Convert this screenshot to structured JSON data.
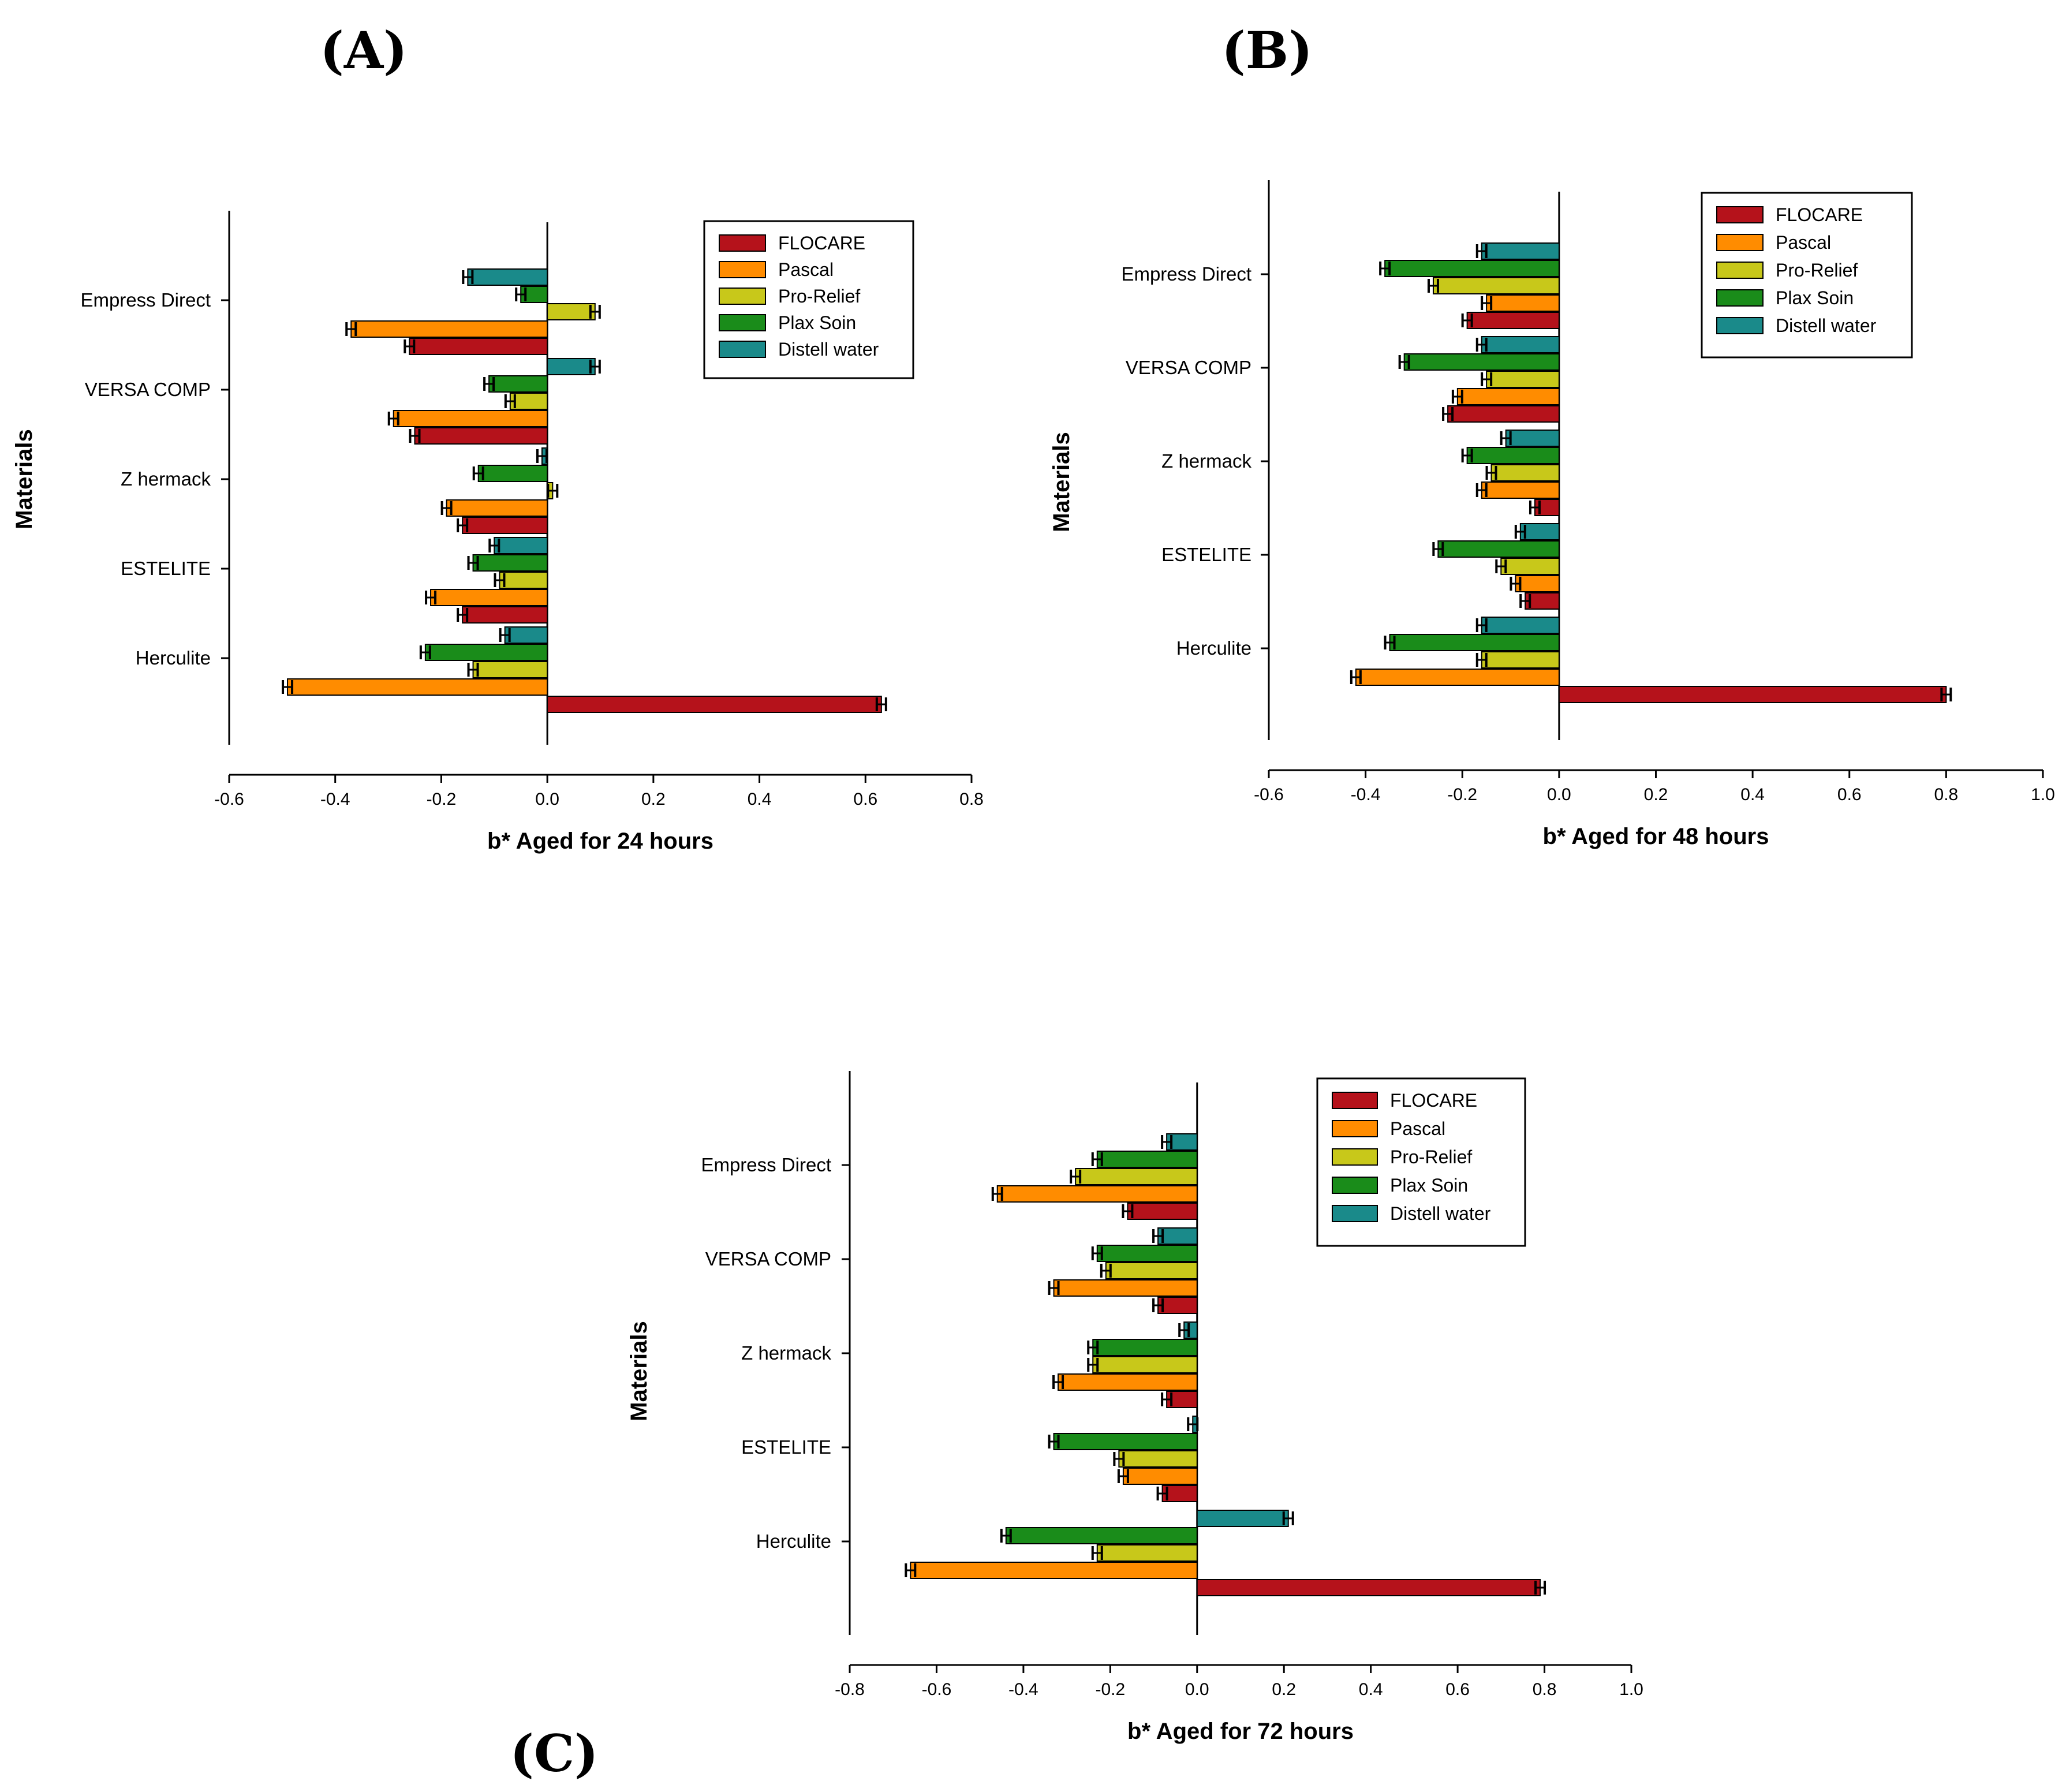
{
  "colors": {
    "FLOCARE": "#b5121b",
    "Pascal": "#ff8c00",
    "Pro-Relief": "#c8c81a",
    "Plax Soin": "#1a8c1a",
    "Distell water": "#1a8a8a"
  },
  "chart_data": [
    {
      "type": "bar",
      "orientation": "horizontal",
      "panel_label": "(A)",
      "title": "",
      "xlabel": "b* Aged for 24 hours",
      "ylabel": "Materials",
      "xlim": [
        -0.6,
        0.8
      ],
      "xticks": [
        "-0.6",
        "-0.4",
        "-0.2",
        "0.0",
        "0.2",
        "0.4",
        "0.6",
        "0.8"
      ],
      "categories": [
        "Empress Direct",
        "VERSA COMP",
        "Z hermack",
        "ESTELITE",
        "Herculite"
      ],
      "legend": "top-right",
      "series": [
        {
          "name": "FLOCARE",
          "values": [
            -0.26,
            -0.25,
            -0.16,
            -0.16,
            0.63
          ]
        },
        {
          "name": "Pascal",
          "values": [
            -0.37,
            -0.29,
            -0.19,
            -0.22,
            -0.49
          ]
        },
        {
          "name": "Pro-Relief",
          "values": [
            0.09,
            -0.07,
            0.01,
            -0.09,
            -0.14
          ]
        },
        {
          "name": "Plax Soin",
          "values": [
            -0.05,
            -0.11,
            -0.13,
            -0.14,
            -0.23
          ]
        },
        {
          "name": "Distell water",
          "values": [
            -0.15,
            0.09,
            -0.01,
            -0.1,
            -0.08
          ]
        }
      ]
    },
    {
      "type": "bar",
      "orientation": "horizontal",
      "panel_label": "(B)",
      "title": "",
      "xlabel": "b* Aged for 48 hours",
      "ylabel": "Materials",
      "xlim": [
        -0.6,
        1.0
      ],
      "xticks": [
        "-0.6",
        "-0.4",
        "-0.2",
        "0.0",
        "0.2",
        "0.4",
        "0.6",
        "0.8",
        "1.0"
      ],
      "categories": [
        "Empress Direct",
        "VERSA COMP",
        "Z hermack",
        "ESTELITE",
        "Herculite"
      ],
      "legend": "top-right",
      "series": [
        {
          "name": "FLOCARE",
          "values": [
            -0.19,
            -0.23,
            -0.05,
            -0.07,
            0.8
          ]
        },
        {
          "name": "Pascal",
          "values": [
            -0.15,
            -0.21,
            -0.16,
            -0.09,
            -0.42
          ]
        },
        {
          "name": "Pro-Relief",
          "values": [
            -0.26,
            -0.15,
            -0.14,
            -0.12,
            -0.16
          ]
        },
        {
          "name": "Plax Soin",
          "values": [
            -0.36,
            -0.32,
            -0.19,
            -0.25,
            -0.35
          ]
        },
        {
          "name": "Distell water",
          "values": [
            -0.16,
            -0.16,
            -0.11,
            -0.08,
            -0.16
          ]
        }
      ]
    },
    {
      "type": "bar",
      "orientation": "horizontal",
      "panel_label": "(C)",
      "title": "",
      "xlabel": "b* Aged for 72 hours",
      "ylabel": "Materials",
      "xlim": [
        -0.8,
        1.0
      ],
      "xticks": [
        "-0.8",
        "-0.6",
        "-0.4",
        "-0.2",
        "0.0",
        "0.2",
        "0.4",
        "0.6",
        "0.8",
        "1.0"
      ],
      "categories": [
        "Empress Direct",
        "VERSA COMP",
        "Z hermack",
        "ESTELITE",
        "Herculite"
      ],
      "legend": "top-right",
      "series": [
        {
          "name": "FLOCARE",
          "values": [
            -0.16,
            -0.09,
            -0.07,
            -0.08,
            0.79
          ]
        },
        {
          "name": "Pascal",
          "values": [
            -0.46,
            -0.33,
            -0.32,
            -0.17,
            -0.66
          ]
        },
        {
          "name": "Pro-Relief",
          "values": [
            -0.28,
            -0.21,
            -0.24,
            -0.18,
            -0.23
          ]
        },
        {
          "name": "Plax Soin",
          "values": [
            -0.23,
            -0.23,
            -0.24,
            -0.33,
            -0.44
          ]
        },
        {
          "name": "Distell water",
          "values": [
            -0.07,
            -0.09,
            -0.03,
            -0.01,
            0.21
          ]
        }
      ]
    }
  ]
}
